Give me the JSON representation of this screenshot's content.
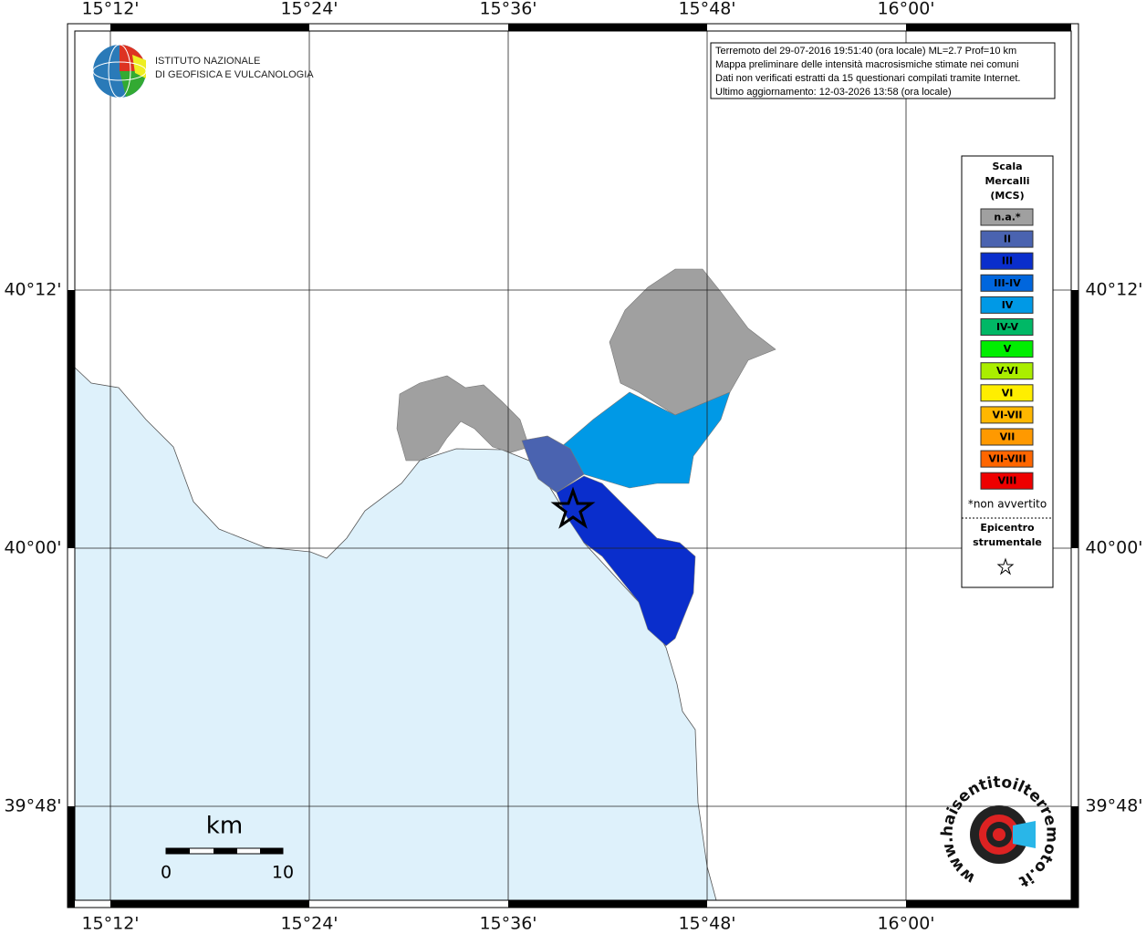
{
  "map": {
    "lon_labels": [
      "15°12'",
      "15°24'",
      "15°36'",
      "15°48'",
      "16°00'"
    ],
    "lat_labels": [
      "40°12'",
      "40°00'",
      "39°48'"
    ],
    "info_lines": [
      "Terremoto del 29-07-2016 19:51:40 (ora locale) ML=2.7 Prof=10 km",
      "Mappa preliminare delle intensità macrosismiche stimate nei comuni",
      "Dati non verificati estratti da 15 questionari compilati tramite Internet.",
      "Ultimo aggiornamento: 12-03-2026 13:58 (ora locale)"
    ],
    "logo_lines": [
      "ISTITUTO NAZIONALE",
      "DI GEOFISICA E VULCANOLOGIA"
    ],
    "legend": {
      "title_lines": [
        "Scala",
        "Mercalli",
        "(MCS)"
      ],
      "items": [
        {
          "label": "n.a.*",
          "color": "#a0a0a0",
          "text_color": "#ffffff"
        },
        {
          "label": "II",
          "color": "#4a63b0",
          "text_color": "#ffffff"
        },
        {
          "label": "III",
          "color": "#0a2ecc",
          "text_color": "#ffffff"
        },
        {
          "label": "III-IV",
          "color": "#0066dd",
          "text_color": "#ffffff"
        },
        {
          "label": "IV",
          "color": "#0099e6",
          "text_color": "#ffffff"
        },
        {
          "label": "IV-V",
          "color": "#00b866",
          "text_color": "#000000"
        },
        {
          "label": "V",
          "color": "#00ee00",
          "text_color": "#000000"
        },
        {
          "label": "V-VI",
          "color": "#aaee00",
          "text_color": "#000000"
        },
        {
          "label": "VI",
          "color": "#ffee00",
          "text_color": "#000000"
        },
        {
          "label": "VI-VII",
          "color": "#ffb700",
          "text_color": "#000000"
        },
        {
          "label": "VII",
          "color": "#ff9900",
          "text_color": "#000000"
        },
        {
          "label": "VII-VIII",
          "color": "#ff6600",
          "text_color": "#000000"
        },
        {
          "label": "VIII",
          "color": "#ee0000",
          "text_color": "#000000"
        }
      ],
      "note": "*non avvertito",
      "epicenter_lines": [
        "Epicentro",
        "strumentale"
      ]
    },
    "scale_bar": {
      "unit": "km",
      "start": "0",
      "end": "10"
    },
    "site_logo": "www.haisentitoilterremoto.it"
  }
}
